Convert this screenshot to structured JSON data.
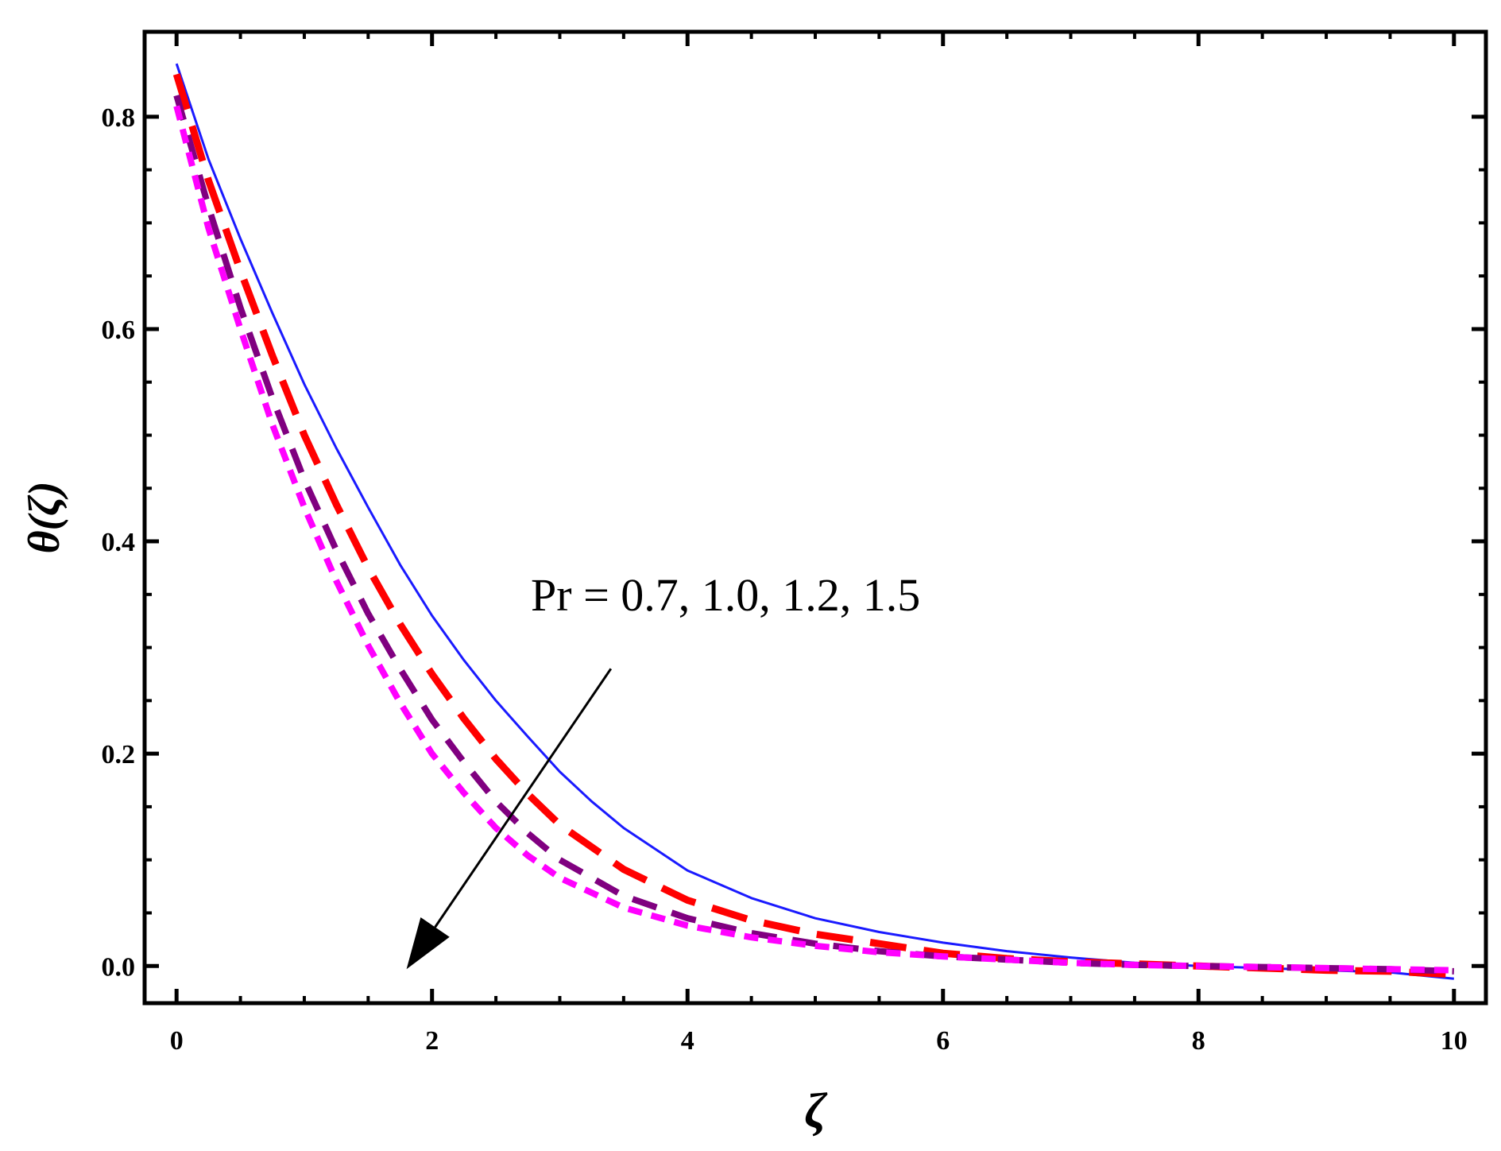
{
  "chart_data": {
    "type": "line",
    "title": "",
    "xlabel": "ζ",
    "ylabel": "θ(ζ)",
    "xlim": [
      -0.25,
      10.25
    ],
    "ylim": [
      -0.035,
      0.88
    ],
    "x_ticks": [
      "0",
      "2",
      "4",
      "6",
      "8",
      "10"
    ],
    "y_ticks": [
      "0.0",
      "0.2",
      "0.4",
      "0.6",
      "0.8"
    ],
    "grid": false,
    "legend": "none",
    "annotation": {
      "text": "Pr = 0.7, 1.0, 1.2, 1.5",
      "arrow_from": [
        3.4,
        0.28
      ],
      "arrow_to": [
        1.8,
        -0.003
      ]
    },
    "series": [
      {
        "color": "#1a1aff",
        "style": "solid",
        "points": [
          [
            0,
            0.85
          ],
          [
            0.25,
            0.76
          ],
          [
            0.5,
            0.685
          ],
          [
            0.75,
            0.615
          ],
          [
            1,
            0.548
          ],
          [
            1.25,
            0.488
          ],
          [
            1.5,
            0.432
          ],
          [
            1.75,
            0.378
          ],
          [
            2,
            0.33
          ],
          [
            2.25,
            0.288
          ],
          [
            2.5,
            0.25
          ],
          [
            2.75,
            0.216
          ],
          [
            3,
            0.183
          ],
          [
            3.25,
            0.155
          ],
          [
            3.5,
            0.13
          ],
          [
            4,
            0.09
          ],
          [
            4.5,
            0.064
          ],
          [
            5,
            0.045
          ],
          [
            5.5,
            0.032
          ],
          [
            6,
            0.022
          ],
          [
            6.5,
            0.014
          ],
          [
            7,
            0.008
          ],
          [
            7.5,
            0.003
          ],
          [
            8,
            0.0
          ],
          [
            8.5,
            -0.002
          ],
          [
            9,
            -0.004
          ],
          [
            9.5,
            -0.006
          ],
          [
            10,
            -0.012
          ]
        ]
      },
      {
        "color": "#ff0000",
        "style": "long-dash",
        "points": [
          [
            0,
            0.84
          ],
          [
            0.25,
            0.74
          ],
          [
            0.5,
            0.655
          ],
          [
            0.75,
            0.575
          ],
          [
            1,
            0.5
          ],
          [
            1.25,
            0.435
          ],
          [
            1.5,
            0.375
          ],
          [
            1.75,
            0.322
          ],
          [
            2,
            0.275
          ],
          [
            2.25,
            0.233
          ],
          [
            2.5,
            0.195
          ],
          [
            2.75,
            0.162
          ],
          [
            3,
            0.133
          ],
          [
            3.5,
            0.091
          ],
          [
            4,
            0.062
          ],
          [
            4.5,
            0.043
          ],
          [
            5,
            0.03
          ],
          [
            5.5,
            0.021
          ],
          [
            6,
            0.012
          ],
          [
            6.5,
            0.007
          ],
          [
            7,
            0.004
          ],
          [
            7.5,
            0.002
          ],
          [
            8,
            0.0
          ],
          [
            8.5,
            -0.002
          ],
          [
            9,
            -0.004
          ],
          [
            9.5,
            -0.005
          ],
          [
            10,
            -0.008
          ]
        ]
      },
      {
        "color": "#800080",
        "style": "dash",
        "points": [
          [
            0,
            0.82
          ],
          [
            0.25,
            0.715
          ],
          [
            0.5,
            0.62
          ],
          [
            0.75,
            0.535
          ],
          [
            1,
            0.458
          ],
          [
            1.25,
            0.392
          ],
          [
            1.5,
            0.332
          ],
          [
            1.75,
            0.28
          ],
          [
            2,
            0.232
          ],
          [
            2.25,
            0.192
          ],
          [
            2.5,
            0.155
          ],
          [
            2.75,
            0.125
          ],
          [
            3,
            0.1
          ],
          [
            3.5,
            0.066
          ],
          [
            4,
            0.045
          ],
          [
            4.5,
            0.031
          ],
          [
            5,
            0.021
          ],
          [
            5.5,
            0.014
          ],
          [
            6,
            0.009
          ],
          [
            6.5,
            0.006
          ],
          [
            7,
            0.003
          ],
          [
            7.5,
            0.001
          ],
          [
            8,
            0.0
          ],
          [
            8.5,
            -0.001
          ],
          [
            9,
            -0.002
          ],
          [
            9.5,
            -0.003
          ],
          [
            10,
            -0.005
          ]
        ]
      },
      {
        "color": "#ff00ff",
        "style": "short-dash",
        "points": [
          [
            0,
            0.81
          ],
          [
            0.25,
            0.695
          ],
          [
            0.5,
            0.6
          ],
          [
            0.75,
            0.51
          ],
          [
            1,
            0.432
          ],
          [
            1.25,
            0.363
          ],
          [
            1.5,
            0.302
          ],
          [
            1.75,
            0.248
          ],
          [
            2,
            0.2
          ],
          [
            2.25,
            0.163
          ],
          [
            2.5,
            0.13
          ],
          [
            2.75,
            0.104
          ],
          [
            3,
            0.083
          ],
          [
            3.5,
            0.055
          ],
          [
            4,
            0.038
          ],
          [
            4.5,
            0.027
          ],
          [
            5,
            0.019
          ],
          [
            5.5,
            0.013
          ],
          [
            6,
            0.009
          ],
          [
            6.5,
            0.006
          ],
          [
            7,
            0.003
          ],
          [
            7.5,
            0.001
          ],
          [
            8,
            0.0
          ],
          [
            8.5,
            -0.001
          ],
          [
            9,
            -0.002
          ],
          [
            9.5,
            -0.003
          ],
          [
            10,
            -0.004
          ]
        ]
      }
    ]
  }
}
